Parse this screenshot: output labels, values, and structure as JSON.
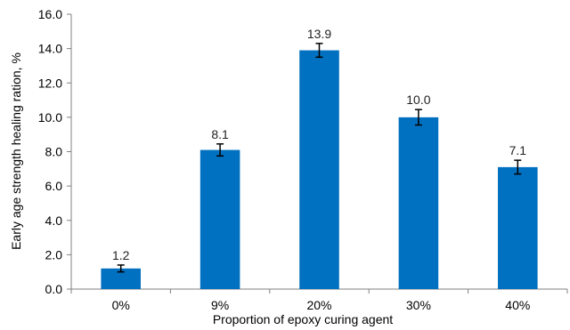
{
  "chart_data": {
    "type": "bar",
    "categories": [
      "0%",
      "9%",
      "20%",
      "30%",
      "40%"
    ],
    "values": [
      1.2,
      8.1,
      13.9,
      10.0,
      7.1
    ],
    "value_labels": [
      "1.2",
      "8.1",
      "13.9",
      "10.0",
      "7.1"
    ],
    "error": [
      0.2,
      0.35,
      0.4,
      0.45,
      0.4
    ],
    "xlabel": "Proportion of epoxy curing agent",
    "ylabel": "Early age strength healing ration, %",
    "ylim": [
      0,
      16
    ],
    "yticks": [
      0,
      2,
      4,
      6,
      8,
      10,
      12,
      14,
      16
    ],
    "ytick_labels": [
      "0.0",
      "2.0",
      "4.0",
      "6.0",
      "8.0",
      "10.0",
      "12.0",
      "14.0",
      "16.0"
    ],
    "grid": false,
    "bar_color": "#0070C0",
    "error_bar_color": "#000000"
  }
}
